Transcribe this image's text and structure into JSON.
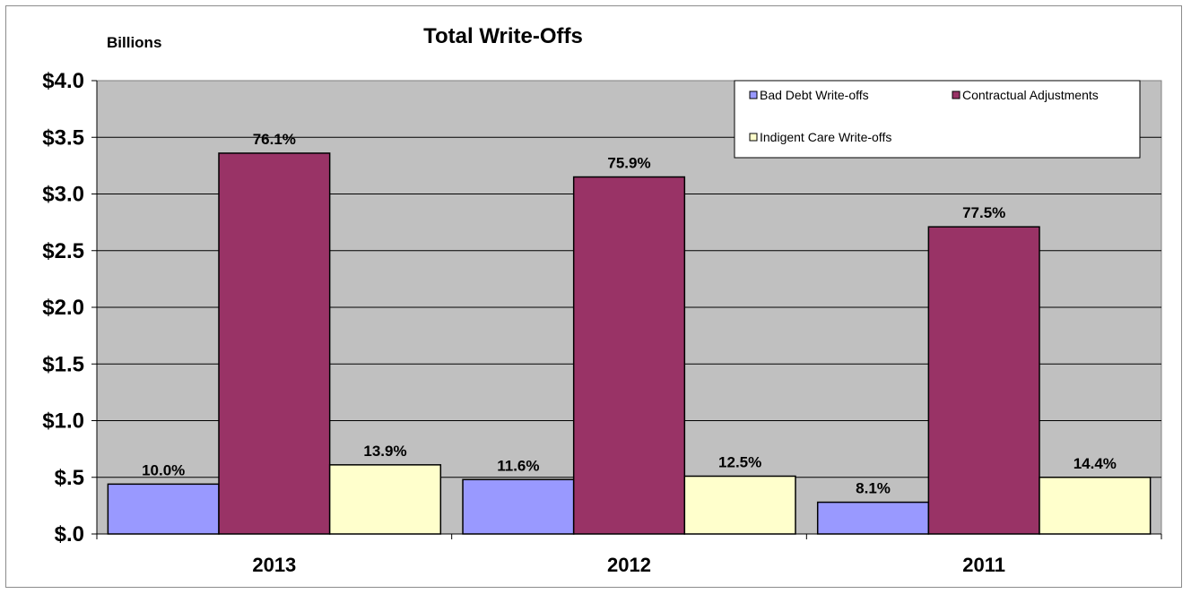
{
  "chart_data": {
    "type": "bar",
    "title": "Total Write-Offs",
    "unit_label": "Billions",
    "categories": [
      "2013",
      "2012",
      "2011"
    ],
    "ylim": [
      0,
      4
    ],
    "yticks": [
      0,
      0.5,
      1,
      1.5,
      2,
      2.5,
      3,
      3.5,
      4
    ],
    "ytick_labels": [
      "$.0",
      "$.5",
      "$1.0",
      "$1.5",
      "$2.0",
      "$2.5",
      "$3.0",
      "$3.5",
      "$4.0"
    ],
    "grid": true,
    "legend_position": "top-right",
    "series": [
      {
        "name": "Bad Debt Write-offs",
        "color": "#9999ff",
        "values": [
          0.44,
          0.48,
          0.28
        ],
        "labels": [
          "10.0%",
          "11.6%",
          "8.1%"
        ]
      },
      {
        "name": "Contractual Adjustments",
        "color": "#993366",
        "values": [
          3.36,
          3.15,
          2.71
        ],
        "labels": [
          "76.1%",
          "75.9%",
          "77.5%"
        ]
      },
      {
        "name": "Indigent Care Write-offs",
        "color": "#ffffcc",
        "values": [
          0.61,
          0.51,
          0.5
        ],
        "labels": [
          "13.9%",
          "12.5%",
          "14.4%"
        ]
      }
    ]
  }
}
